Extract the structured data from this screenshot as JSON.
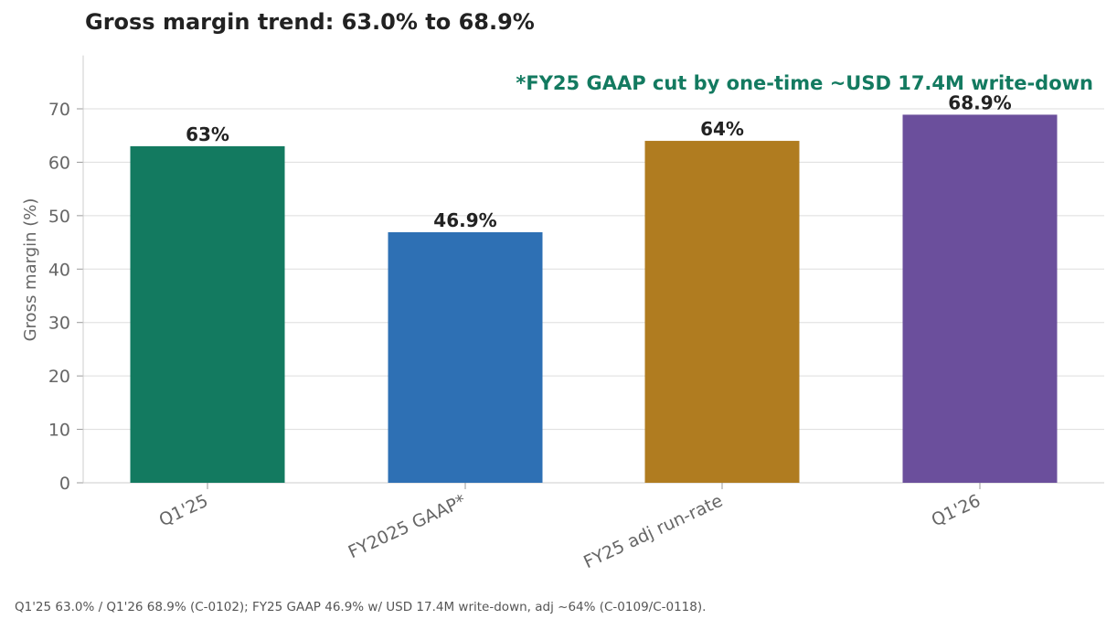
{
  "title": "Gross margin trend: 63.0% to 68.9%",
  "source_note": "Q1'25 63.0% / Q1'26 68.9% (C-0102); FY25 GAAP 46.9% w/ USD 17.4M write-down, adj ~64% (C-0109/C-0118).",
  "chart_data": {
    "type": "bar",
    "title": "Gross margin trend: 63.0% to 68.9%",
    "ylabel": "Gross margin (%)",
    "xlabel": "",
    "ylim": [
      0,
      80
    ],
    "yticks": [
      0,
      10,
      20,
      30,
      40,
      50,
      60,
      70
    ],
    "grid": true,
    "categories": [
      "Q1'25",
      "FY2025 GAAP*",
      "FY25 adj run-rate",
      "Q1'26"
    ],
    "values": [
      63.0,
      46.9,
      64.0,
      68.9
    ],
    "data_labels": [
      "63%",
      "46.9%",
      "64%",
      "68.9%"
    ],
    "colors": [
      "#137a60",
      "#2e70b4",
      "#b07c20",
      "#6b4f9c"
    ],
    "annotation": "*FY25 GAAP cut by one-time ~USD 17.4M write-down",
    "annotation_color": "#137a60"
  }
}
